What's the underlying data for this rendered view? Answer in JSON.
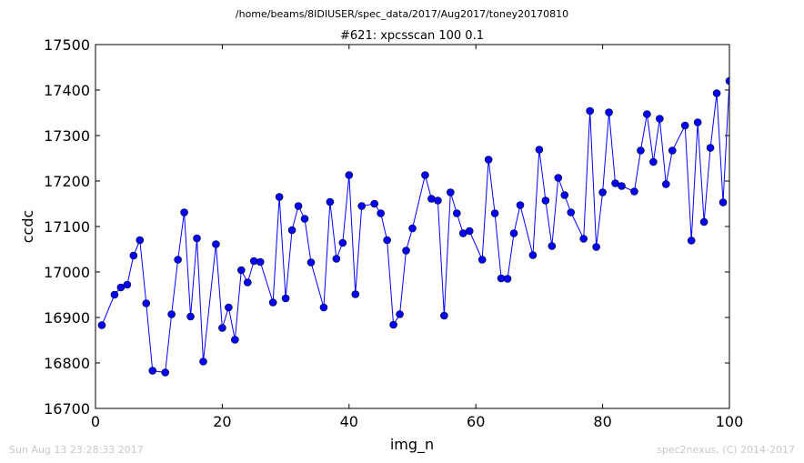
{
  "suptitle": "/home/beams/8IDIUSER/spec_data/2017/Aug2017/toney20170810",
  "footer_left": "Sun Aug 13 23:28:33 2017",
  "footer_right": "spec2nexus, (C) 2014-2017",
  "colors": {
    "series": "#0000ff",
    "axes": "#000000",
    "footer": "#c8c8c8"
  },
  "chart_data": {
    "type": "line",
    "title": "#621: xpcsscan 100 0.1",
    "xlabel": "img_n",
    "ylabel": "ccdc",
    "xlim": [
      0,
      100
    ],
    "ylim": [
      16700,
      17500
    ],
    "xticks": [
      0,
      20,
      40,
      60,
      80,
      100
    ],
    "yticks": [
      16700,
      16800,
      16900,
      17000,
      17100,
      17200,
      17300,
      17400,
      17500
    ],
    "grid": false,
    "marker": "circle",
    "series": [
      {
        "x": [
          1,
          3,
          4,
          5,
          6,
          7,
          8,
          9,
          11,
          12,
          13,
          14,
          15,
          16,
          17,
          19,
          20,
          21,
          22,
          23,
          24,
          25,
          26,
          28,
          29,
          30,
          31,
          32,
          33,
          34,
          36,
          37,
          38,
          39,
          40,
          41,
          42,
          44,
          45,
          46,
          47,
          48,
          49,
          50,
          52,
          53,
          54,
          55,
          56,
          57,
          58,
          59,
          61,
          62,
          63,
          64,
          65,
          66,
          67,
          69,
          70,
          71,
          72,
          73,
          74,
          75,
          77,
          78,
          79,
          80,
          81,
          82,
          83,
          85,
          86,
          87,
          88,
          89,
          90,
          91,
          93,
          94,
          95,
          96,
          97,
          98,
          99,
          100
        ],
        "y": [
          16883,
          16950,
          16966,
          16972,
          17036,
          17070,
          16931,
          16783,
          16779,
          16907,
          17027,
          17131,
          16902,
          17074,
          16803,
          17061,
          16877,
          16922,
          16851,
          17004,
          16977,
          17024,
          17022,
          16933,
          17165,
          16942,
          17092,
          17145,
          17117,
          17021,
          16922,
          17154,
          17029,
          17064,
          17213,
          16951,
          17145,
          17150,
          17129,
          17070,
          16884,
          16907,
          17047,
          17096,
          17213,
          17161,
          17157,
          16904,
          17175,
          17129,
          17085,
          17090,
          17027,
          17247,
          17129,
          16986,
          16985,
          17085,
          17147,
          17037,
          17269,
          17157,
          17057,
          17207,
          17169,
          17131,
          17073,
          17354,
          17055,
          17175,
          17351,
          17195,
          17189,
          17177,
          17267,
          17347,
          17242,
          17337,
          17193,
          17267,
          17322,
          17069,
          17329,
          17110,
          17273,
          17393,
          17153,
          17420
        ]
      }
    ]
  }
}
